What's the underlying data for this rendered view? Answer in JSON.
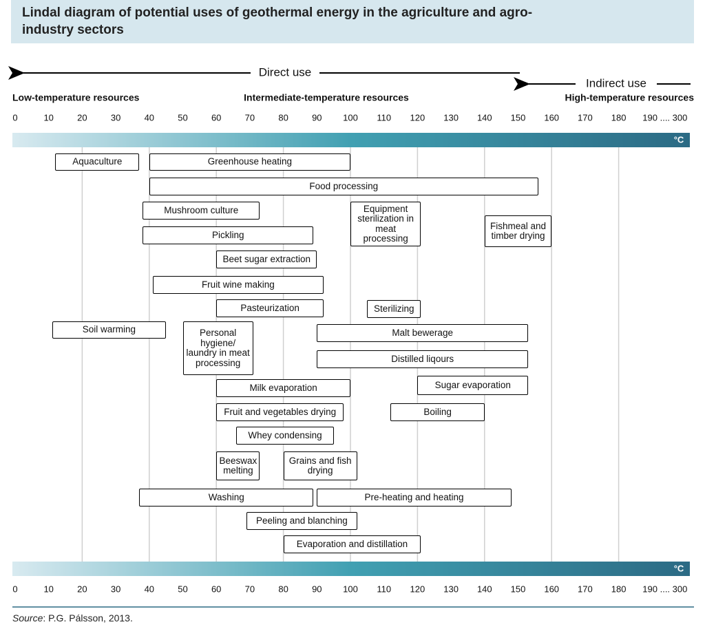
{
  "chart_data": {
    "type": "range",
    "title": "Lindal diagram of potential uses of geothermal energy in the agriculture and agro-industry sectors",
    "direct_label": "Direct use",
    "indirect_label": "Indirect use",
    "zones": [
      "Low-temperature resources",
      "Intermediate-temperature resources",
      "High-temperature resources"
    ],
    "unit": "°C",
    "xlim": [
      0,
      200
    ],
    "xticks": [
      0,
      10,
      20,
      30,
      40,
      50,
      60,
      70,
      80,
      90,
      100,
      110,
      120,
      130,
      140,
      150,
      160,
      170,
      180,
      {
        "value": 190,
        "label": "190 .... 300"
      }
    ],
    "gridlines": [
      20,
      40,
      60,
      80,
      100,
      120,
      140,
      160,
      180
    ],
    "box_color": "#000000",
    "ranges": [
      {
        "label": "Aquaculture",
        "start": 12,
        "end": 37
      },
      {
        "label": "Greenhouse heating",
        "start": 40,
        "end": 100
      },
      {
        "label": "Food processing",
        "start": 40,
        "end": 156
      },
      {
        "label": "Mushroom culture",
        "start": 38,
        "end": 73
      },
      {
        "label": "Equipment sterilization in meat processing",
        "start": 100,
        "end": 121
      },
      {
        "label": "Fishmeal and timber drying",
        "start": 140,
        "end": 160
      },
      {
        "label": "Pickling",
        "start": 38,
        "end": 89
      },
      {
        "label": "Beet sugar extraction",
        "start": 60,
        "end": 90
      },
      {
        "label": "Fruit wine making",
        "start": 41,
        "end": 92
      },
      {
        "label": "Pasteurization",
        "start": 60,
        "end": 92
      },
      {
        "label": "Sterilizing",
        "start": 105,
        "end": 121
      },
      {
        "label": "Soil warming",
        "start": 11,
        "end": 45
      },
      {
        "label": "Personal hygiene/ laundry in meat processing",
        "start": 50,
        "end": 71
      },
      {
        "label": "Malt bewerage",
        "start": 90,
        "end": 153
      },
      {
        "label": "Distilled liqours",
        "start": 90,
        "end": 153
      },
      {
        "label": "Milk evaporation",
        "start": 60,
        "end": 100
      },
      {
        "label": "Sugar evaporation",
        "start": 120,
        "end": 153
      },
      {
        "label": "Fruit and vegetables drying",
        "start": 60,
        "end": 98
      },
      {
        "label": "Boiling",
        "start": 112,
        "end": 140
      },
      {
        "label": "Whey condensing",
        "start": 66,
        "end": 95
      },
      {
        "label": "Beeswax melting",
        "start": 60,
        "end": 73
      },
      {
        "label": "Grains and fish drying",
        "start": 80,
        "end": 102
      },
      {
        "label": "Washing",
        "start": 37,
        "end": 89
      },
      {
        "label": "Pre-heating and heating",
        "start": 90,
        "end": 148
      },
      {
        "label": "Peeling and blanching",
        "start": 69,
        "end": 102
      },
      {
        "label": "Evaporation and distillation",
        "start": 80,
        "end": 121
      }
    ],
    "source_label": "Source",
    "source_text": ": P.G. Pálsson, 2013."
  }
}
